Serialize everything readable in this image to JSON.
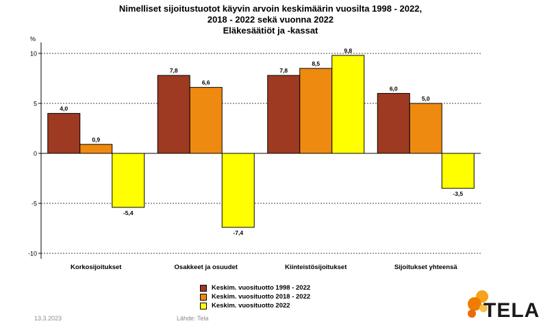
{
  "title": {
    "line1": "Nimelliset sijoitustuotot käyvin arvoin keskimäärin vuosilta 1998 - 2022,",
    "line2": "2018 - 2022 sekä vuonna 2022",
    "line3": "Eläkesäätiöt ja -kassat"
  },
  "footer": {
    "date": "13.3.2023",
    "source": "Lähde: Tela"
  },
  "logo": {
    "text": "TELA"
  },
  "colors": {
    "s1": "#9e3a22",
    "s2": "#ef8a10",
    "s3": "#ffff00",
    "bar_stroke": "#000000"
  },
  "chart_data": {
    "type": "bar",
    "ylabel": "%",
    "ylim": [
      -10,
      10
    ],
    "yticks": [
      10,
      5,
      0,
      -5,
      -10
    ],
    "grid": true,
    "legend": "bottom-center",
    "categories": [
      "Korkosijoitukset",
      "Osakkeet ja osuudet",
      "Kiinteistösijoitukset",
      "Sijoitukset yhteensä"
    ],
    "series": [
      {
        "name": "Keskim. vuosituotto 1998 - 2022",
        "color": "#9e3a22",
        "values": [
          4.0,
          7.8,
          7.8,
          6.0
        ],
        "labels": [
          "4,0",
          "7,8",
          "7,8",
          "6,0"
        ]
      },
      {
        "name": "Keskim. vuosituotto 2018 - 2022",
        "color": "#ef8a10",
        "values": [
          0.9,
          6.6,
          8.5,
          5.0
        ],
        "labels": [
          "0,9",
          "6,6",
          "8,5",
          "5,0"
        ]
      },
      {
        "name": "Keskim. vuosituotto 2022",
        "color": "#ffff00",
        "values": [
          -5.4,
          -7.4,
          9.8,
          -3.5
        ],
        "labels": [
          "-5,4",
          "-7,4",
          "9,8",
          "-3,5"
        ]
      }
    ]
  }
}
